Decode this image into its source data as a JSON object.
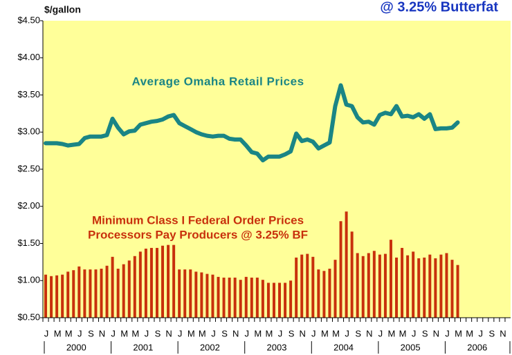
{
  "chart_data": {
    "type": "bar_line",
    "title": "@ 3.25% Butterfat",
    "y_label": "$/gallon",
    "categories": [
      "J",
      null,
      "M",
      null,
      "M",
      null,
      "J",
      null,
      "S",
      null,
      "N",
      null,
      "J",
      null,
      "M",
      null,
      "M",
      null,
      "J",
      null,
      "S",
      null,
      "N",
      null,
      "J",
      null,
      "M",
      null,
      "M",
      null,
      "J",
      null,
      "S",
      null,
      "N",
      null,
      "J",
      null,
      "M",
      null,
      "M",
      null,
      "J",
      null,
      "S",
      null,
      "N",
      null,
      "J",
      null,
      "M",
      null,
      "M",
      null,
      "J",
      null,
      "S",
      null,
      "N",
      null,
      "J",
      null,
      "M",
      null,
      "M",
      null,
      "J",
      null,
      "S",
      null,
      "N",
      null,
      "J",
      null,
      "M",
      null,
      "M",
      null,
      "J",
      null,
      "S",
      null,
      "N",
      null
    ],
    "years": [
      "2000",
      "2001",
      "2002",
      "2003",
      "2004",
      "2005",
      "2006"
    ],
    "series": [
      {
        "name": "Minimum Class I Federal Order Prices",
        "subtitle": "Processors Pay Producers @ 3.25% BF",
        "kind": "bar",
        "color": "#c8300c",
        "values": [
          1.08,
          1.06,
          1.07,
          1.08,
          1.12,
          1.14,
          1.19,
          1.15,
          1.15,
          1.15,
          1.16,
          1.2,
          1.32,
          1.16,
          1.22,
          1.27,
          1.33,
          1.39,
          1.43,
          1.44,
          1.44,
          1.47,
          1.48,
          1.48,
          1.15,
          1.15,
          1.15,
          1.12,
          1.11,
          1.09,
          1.08,
          1.05,
          1.04,
          1.04,
          1.04,
          1.01,
          1.05,
          1.04,
          1.04,
          1.01,
          0.97,
          0.97,
          0.97,
          0.97,
          1.0,
          1.31,
          1.35,
          1.36,
          1.32,
          1.15,
          1.13,
          1.16,
          1.28,
          1.8,
          1.93,
          1.66,
          1.37,
          1.33,
          1.37,
          1.4,
          1.35,
          1.36,
          1.55,
          1.31,
          1.44,
          1.34,
          1.39,
          1.3,
          1.31,
          1.35,
          1.3,
          1.35,
          1.37,
          1.28,
          1.21,
          null,
          null,
          null,
          null,
          null,
          null,
          null,
          null,
          null
        ]
      },
      {
        "name": "Average Omaha Retail Prices",
        "kind": "line",
        "color": "#1a8585",
        "values": [
          2.85,
          2.85,
          2.85,
          2.84,
          2.82,
          2.83,
          2.84,
          2.92,
          2.94,
          2.94,
          2.94,
          2.96,
          3.18,
          3.06,
          2.97,
          3.01,
          3.02,
          3.1,
          3.12,
          3.14,
          3.15,
          3.17,
          3.21,
          3.23,
          3.12,
          3.08,
          3.04,
          3.0,
          2.97,
          2.95,
          2.94,
          2.95,
          2.95,
          2.91,
          2.9,
          2.9,
          2.82,
          2.73,
          2.71,
          2.62,
          2.67,
          2.67,
          2.67,
          2.7,
          2.74,
          2.98,
          2.88,
          2.9,
          2.87,
          2.78,
          2.82,
          2.86,
          3.35,
          3.63,
          3.37,
          3.35,
          3.2,
          3.13,
          3.14,
          3.1,
          3.23,
          3.26,
          3.24,
          3.35,
          3.21,
          3.22,
          3.2,
          3.24,
          3.18,
          3.24,
          3.04,
          3.05,
          3.05,
          3.06,
          3.13,
          null,
          null,
          null,
          null,
          null,
          null,
          null,
          null,
          null
        ]
      }
    ],
    "ylim": [
      0.5,
      4.5
    ],
    "yticks": [
      {
        "value": 0.5,
        "label": "$0.50"
      },
      {
        "value": 1.0,
        "label": "$1.00"
      },
      {
        "value": 1.5,
        "label": "$1.50"
      },
      {
        "value": 2.0,
        "label": "$2.00"
      },
      {
        "value": 2.5,
        "label": "$2.50"
      },
      {
        "value": 3.0,
        "label": "$3.00"
      },
      {
        "value": 3.5,
        "label": "$3.50"
      },
      {
        "value": 4.0,
        "label": "$4.00"
      },
      {
        "value": 4.5,
        "label": "$4.50"
      }
    ],
    "grid": false,
    "background": "#ffff99"
  }
}
